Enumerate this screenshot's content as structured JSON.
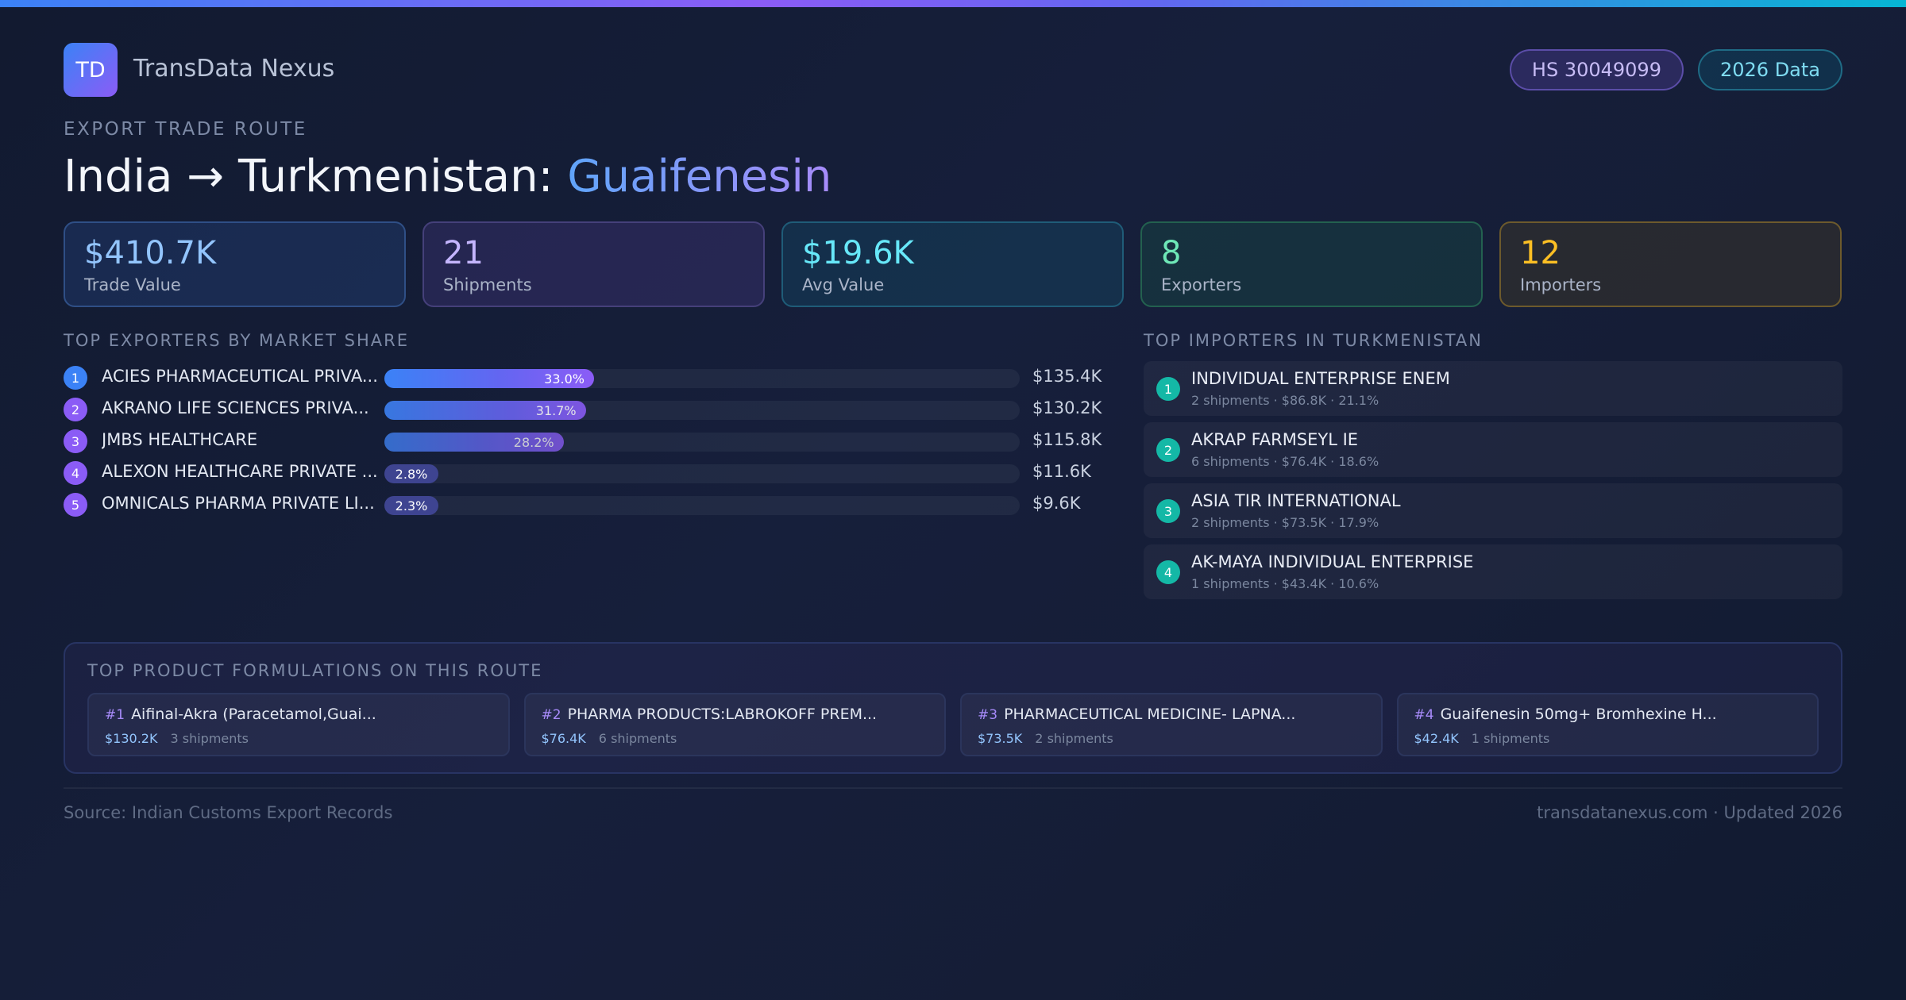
{
  "brand": {
    "logo_text": "TD",
    "name": "TransData Nexus"
  },
  "badges": {
    "hs_code": "HS 30049099",
    "data_year": "2026 Data"
  },
  "route": {
    "eyebrow": "EXPORT TRADE ROUTE",
    "title_prefix": "India → Turkmenistan: ",
    "product": "Guaifenesin"
  },
  "stats": [
    {
      "value": "$410.7K",
      "label": "Trade Value"
    },
    {
      "value": "21",
      "label": "Shipments"
    },
    {
      "value": "$19.6K",
      "label": "Avg Value"
    },
    {
      "value": "8",
      "label": "Exporters"
    },
    {
      "value": "12",
      "label": "Importers"
    }
  ],
  "exporters": {
    "heading": "TOP EXPORTERS BY MARKET SHARE",
    "rows": [
      {
        "rank": "1",
        "name": "ACIES PHARMACEUTICAL PRIVA...",
        "share": 33.0,
        "share_label": "33.0%",
        "value": "$135.4K",
        "color": "#3b82f6"
      },
      {
        "rank": "2",
        "name": "AKRANO LIFE SCIENCES PRIVA...",
        "share": 31.7,
        "share_label": "31.7%",
        "value": "$130.2K",
        "color": "#8b5cf6"
      },
      {
        "rank": "3",
        "name": "JMBS HEALTHCARE",
        "share": 28.2,
        "share_label": "28.2%",
        "value": "$115.8K",
        "color": "#8b5cf6"
      },
      {
        "rank": "4",
        "name": "ALEXON HEALTHCARE PRIVATE ...",
        "share": 2.8,
        "share_label": "2.8%",
        "value": "$11.6K",
        "color": "#8b5cf6"
      },
      {
        "rank": "5",
        "name": "OMNICALS PHARMA PRIVATE LI...",
        "share": 2.3,
        "share_label": "2.3%",
        "value": "$9.6K",
        "color": "#8b5cf6"
      }
    ]
  },
  "importers": {
    "heading": "TOP IMPORTERS IN TURKMENISTAN",
    "rows": [
      {
        "rank": "1",
        "name": "INDIVIDUAL ENTERPRISE ENEM",
        "meta": "2 shipments · $86.8K · 21.1%"
      },
      {
        "rank": "2",
        "name": "AKRAP FARMSEYL IE",
        "meta": "6 shipments · $76.4K · 18.6%"
      },
      {
        "rank": "3",
        "name": "ASIA TIR INTERNATIONAL",
        "meta": "2 shipments · $73.5K · 17.9%"
      },
      {
        "rank": "4",
        "name": "AK-MAYA INDIVIDUAL ENTERPRISE",
        "meta": "1 shipments · $43.4K · 10.6%"
      }
    ]
  },
  "products": {
    "heading": "TOP PRODUCT FORMULATIONS ON THIS ROUTE",
    "items": [
      {
        "rank": "#1",
        "name": "Aifinal-Akra (Paracetamol,Guai...",
        "value": "$130.2K",
        "shipments": "3 shipments"
      },
      {
        "rank": "#2",
        "name": "PHARMA PRODUCTS:LABROKOFF PREM...",
        "value": "$76.4K",
        "shipments": "6 shipments"
      },
      {
        "rank": "#3",
        "name": "PHARMACEUTICAL MEDICINE- LAPNA...",
        "value": "$73.5K",
        "shipments": "2 shipments"
      },
      {
        "rank": "#4",
        "name": "Guaifenesin 50mg+ Bromhexine H...",
        "value": "$42.4K",
        "shipments": "1 shipments"
      }
    ]
  },
  "footer": {
    "source": "Source: Indian Customs Export Records",
    "site": "transdatanexus.com · Updated 2026"
  }
}
